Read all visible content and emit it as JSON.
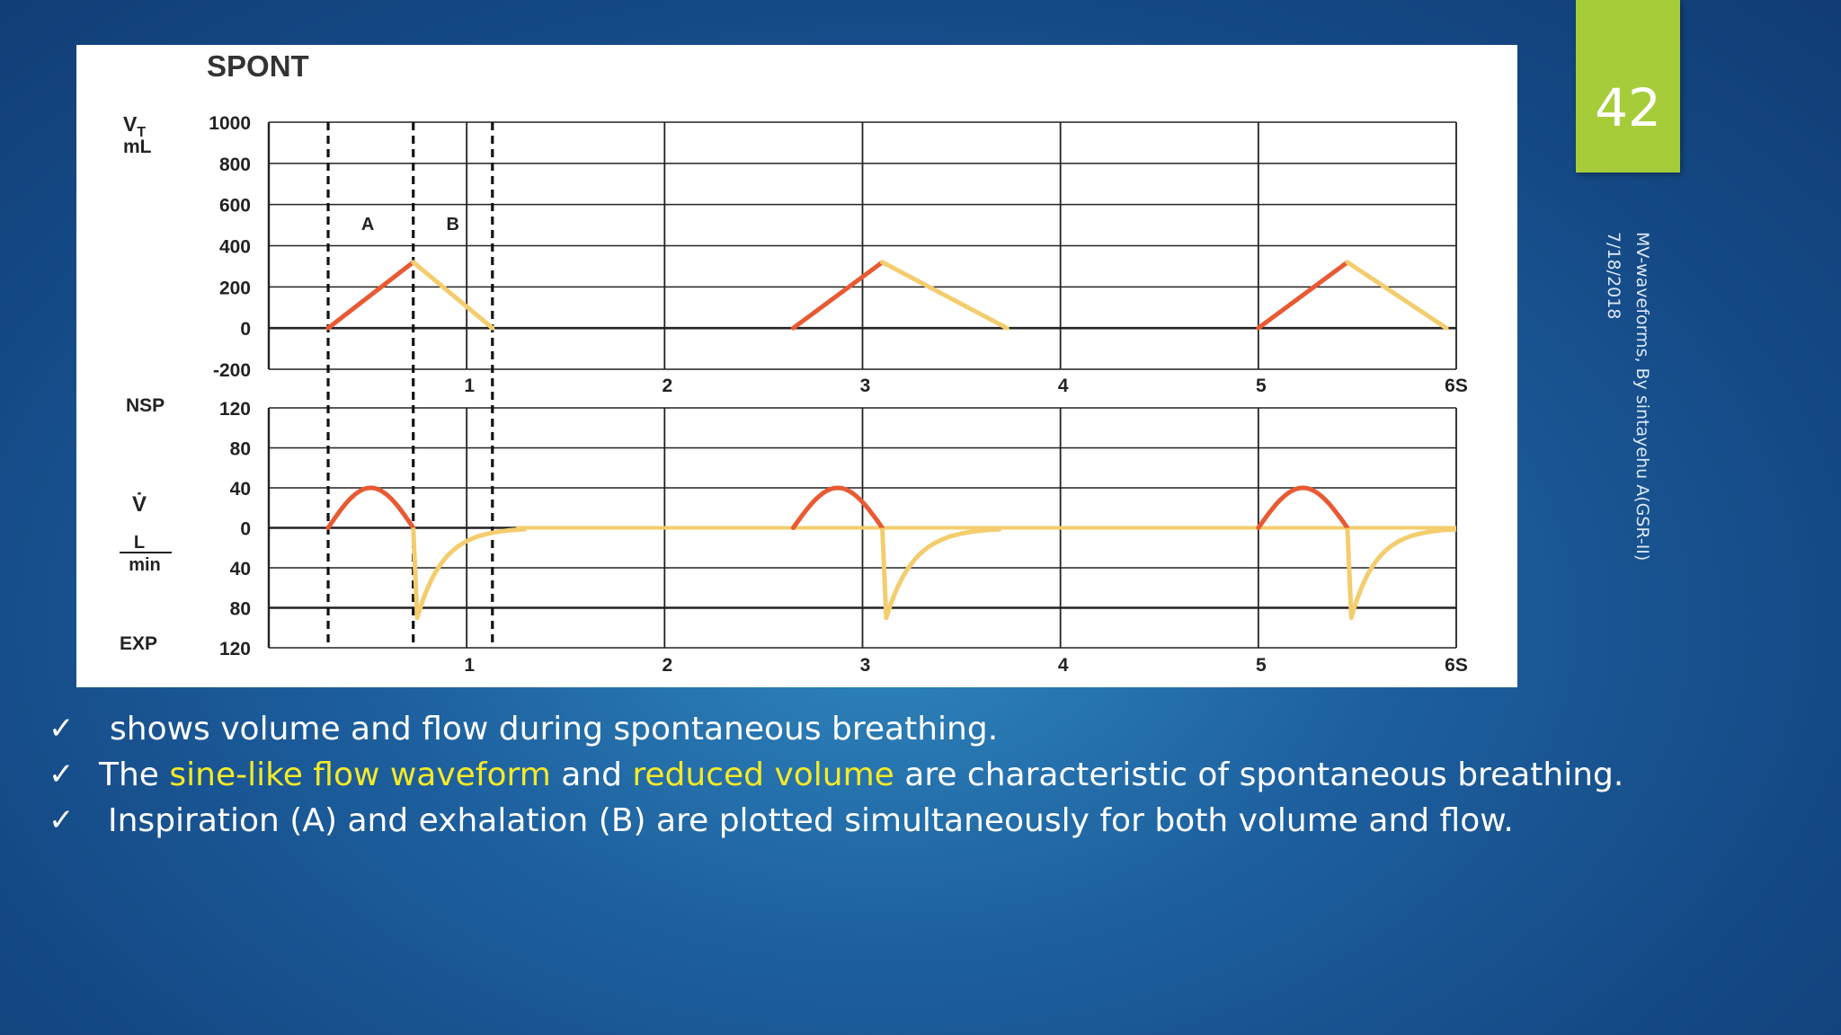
{
  "slide": {
    "number": "42",
    "side_note_lines": [
      "MV-waveforms, By sintayehu A(GSR-II)",
      "7/18/2018"
    ]
  },
  "bullets": [
    {
      "check": "✓",
      "segments": [
        {
          "text": "shows volume and flow during spontaneous breathing.",
          "highlight": false
        }
      ]
    },
    {
      "check": "✓",
      "segments": [
        {
          "text": "The ",
          "highlight": false
        },
        {
          "text": "sine-like flow waveform",
          "highlight": true
        },
        {
          "text": " and ",
          "highlight": false
        },
        {
          "text": "reduced volume",
          "highlight": true
        },
        {
          "text": " are characteristic of spontaneous breathing.",
          "highlight": false
        }
      ]
    },
    {
      "check": "✓",
      "segments": [
        {
          "text": "Inspiration (A) and exhalation (B) are plotted simultaneously for both volume and flow.",
          "highlight": false
        }
      ]
    }
  ],
  "colors": {
    "inspiration": "#e85a33",
    "expiration": "#f3cd6e",
    "highlight": "#f5ea28",
    "slide_number_bg": "#a6cd39"
  },
  "chart_data": {
    "type": "line",
    "title": "SPONT",
    "phase_labels": [
      "A",
      "B"
    ],
    "x_ticks": [
      "1",
      "2",
      "3",
      "4",
      "5",
      "6S"
    ],
    "volume_panel": {
      "ylabel_lines": [
        "VT",
        "mL"
      ],
      "y_ticks": [
        "1000",
        "800",
        "600",
        "400",
        "200",
        "0",
        "-200"
      ],
      "ylim": [
        -200,
        1000
      ],
      "inspiration_segments": [
        [
          [
            0.3,
            0
          ],
          [
            0.73,
            320
          ]
        ],
        [
          [
            2.65,
            0
          ],
          [
            3.1,
            320
          ]
        ],
        [
          [
            5.0,
            0
          ],
          [
            5.45,
            320
          ]
        ]
      ],
      "expiration_segments": [
        [
          [
            0.73,
            320
          ],
          [
            1.13,
            0
          ]
        ],
        [
          [
            3.1,
            320
          ],
          [
            3.73,
            0
          ]
        ],
        [
          [
            5.45,
            320
          ],
          [
            5.95,
            0
          ]
        ]
      ]
    },
    "flow_panel": {
      "ylabel_top": "NSP",
      "ylabel_mid": "V̇",
      "ylabel_unit_num": "L",
      "ylabel_unit_den": "min",
      "ylabel_bottom": "EXP",
      "y_ticks": [
        "120",
        "80",
        "40",
        "0",
        "40",
        "80",
        "120"
      ],
      "ylim": [
        -120,
        120
      ],
      "inspirations": [
        {
          "start": 0.3,
          "end": 0.73,
          "peak": 40
        },
        {
          "start": 2.65,
          "end": 3.1,
          "peak": 40
        },
        {
          "start": 5.0,
          "end": 5.45,
          "peak": 40
        }
      ],
      "expirations": [
        {
          "start": 0.73,
          "trough": -90,
          "recover": 1.3
        },
        {
          "start": 3.1,
          "trough": -90,
          "recover": 3.7
        },
        {
          "start": 5.45,
          "trough": -90,
          "recover": 6.0
        }
      ]
    }
  }
}
